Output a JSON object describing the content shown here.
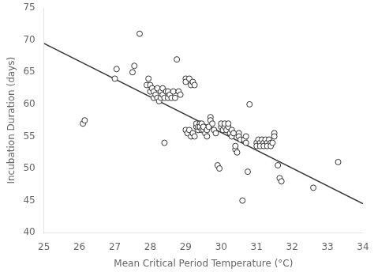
{
  "chart_data": {
    "type": "scatter",
    "xlabel": "Mean Critical Period Temperature (°C)",
    "ylabel": "Incubation Duration (days)",
    "xlim": [
      25,
      34
    ],
    "ylim": [
      40,
      75
    ],
    "xticks": [
      25,
      26,
      27,
      28,
      29,
      30,
      31,
      32,
      33,
      34
    ],
    "yticks": [
      40,
      45,
      50,
      55,
      60,
      65,
      70,
      75
    ],
    "grid": false,
    "series": [
      {
        "type": "line",
        "color": "#333333",
        "line_style": "solid",
        "x": [
          25,
          34
        ],
        "values": [
          69.5,
          44.5
        ]
      },
      {
        "type": "scatter",
        "color": "#333333",
        "marker": "circle",
        "x": [
          26.1,
          26.15,
          27.0,
          27.05,
          27.5,
          27.55,
          27.7,
          27.9,
          27.95,
          28.0,
          28.0,
          28.05,
          28.1,
          28.1,
          28.15,
          28.2,
          28.2,
          28.25,
          28.3,
          28.3,
          28.35,
          28.35,
          28.4,
          28.4,
          28.45,
          28.5,
          28.5,
          28.55,
          28.6,
          28.65,
          28.7,
          28.75,
          28.8,
          28.85,
          29.0,
          29.0,
          29.0,
          29.05,
          29.1,
          29.1,
          29.15,
          29.15,
          29.2,
          29.2,
          29.25,
          29.25,
          29.3,
          29.3,
          29.35,
          29.35,
          29.4,
          29.4,
          29.45,
          29.45,
          29.5,
          29.5,
          29.55,
          29.6,
          29.6,
          29.65,
          29.7,
          29.7,
          29.75,
          29.8,
          29.85,
          29.9,
          29.95,
          30.0,
          30.0,
          30.05,
          30.1,
          30.1,
          30.15,
          30.2,
          30.2,
          30.25,
          30.3,
          30.3,
          30.35,
          30.4,
          30.4,
          30.45,
          30.5,
          30.5,
          30.55,
          30.6,
          30.65,
          30.7,
          30.7,
          30.75,
          30.8,
          31.0,
          31.0,
          31.05,
          31.1,
          31.1,
          31.15,
          31.2,
          31.2,
          31.25,
          31.3,
          31.3,
          31.35,
          31.4,
          31.4,
          31.45,
          31.5,
          31.5,
          31.6,
          31.65,
          31.7,
          32.6,
          33.3
        ],
        "values": [
          57.0,
          57.5,
          64.0,
          65.5,
          65.0,
          66.0,
          71.0,
          63.0,
          64.0,
          62.0,
          63.0,
          62.5,
          61.0,
          62.0,
          61.5,
          61.0,
          62.5,
          60.5,
          62.0,
          61.0,
          61.5,
          62.5,
          61.0,
          54.0,
          62.0,
          61.0,
          62.0,
          61.5,
          61.0,
          62.0,
          61.0,
          67.0,
          62.0,
          61.5,
          64.0,
          56.0,
          63.5,
          55.5,
          64.0,
          56.0,
          63.0,
          55.0,
          63.5,
          55.5,
          63.0,
          55.0,
          56.5,
          57.0,
          56.0,
          56.5,
          57.0,
          56.5,
          56.0,
          57.0,
          56.0,
          56.5,
          55.5,
          55.0,
          56.0,
          56.5,
          58.0,
          57.5,
          57.0,
          56.0,
          55.5,
          50.5,
          50.0,
          56.5,
          57.0,
          56.0,
          56.5,
          57.0,
          56.0,
          56.5,
          57.0,
          55.5,
          55.0,
          56.0,
          55.5,
          53.0,
          53.5,
          52.5,
          55.5,
          55.0,
          54.5,
          45.0,
          54.5,
          54.0,
          55.0,
          49.5,
          60.0,
          54.0,
          53.5,
          54.5,
          54.0,
          53.5,
          54.5,
          54.0,
          53.5,
          54.5,
          54.0,
          53.5,
          54.5,
          54.0,
          53.5,
          54.0,
          55.5,
          55.0,
          50.5,
          48.5,
          48.0,
          47.0,
          51.0
        ]
      }
    ]
  }
}
